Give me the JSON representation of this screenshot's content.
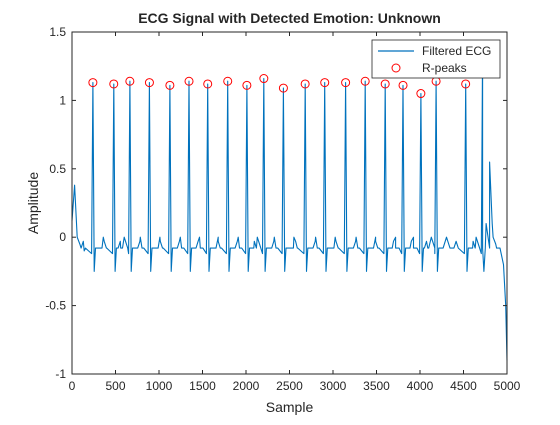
{
  "chart_data": {
    "type": "line",
    "title": "ECG Signal with Detected Emotion: Unknown",
    "xlabel": "Sample",
    "ylabel": "Amplitude",
    "xlim": [
      0,
      5000
    ],
    "ylim": [
      -1,
      1.5
    ],
    "x_ticks": [
      0,
      500,
      1000,
      1500,
      2000,
      2500,
      3000,
      3500,
      4000,
      4500,
      5000
    ],
    "x_tick_labels": [
      "0",
      "500",
      "1000",
      "1500",
      "2000",
      "2500",
      "3000",
      "3500",
      "4000",
      "4500",
      "5000"
    ],
    "y_ticks": [
      -1,
      -0.5,
      0,
      0.5,
      1,
      1.5
    ],
    "y_tick_labels": [
      "-1",
      "-0.5",
      "0",
      "0.5",
      "1",
      "1.5"
    ],
    "grid": false,
    "legend_position": "top-right",
    "series": [
      {
        "name": "Filtered ECG",
        "kind": "line",
        "color": "#0072BD",
        "baseline": -0.08,
        "start_points": [
          [
            0,
            0.12
          ],
          [
            30,
            0.38
          ],
          [
            60,
            0.0
          ],
          [
            90,
            -0.05
          ],
          [
            140,
            -0.1
          ]
        ],
        "end_points": [
          [
            4720,
            -0.08
          ],
          [
            4760,
            0.1
          ],
          [
            4800,
            0.55
          ],
          [
            4830,
            0.1
          ],
          [
            4870,
            -0.05
          ],
          [
            4920,
            -0.08
          ],
          [
            4960,
            -0.2
          ],
          [
            4985,
            -0.5
          ],
          [
            5000,
            -0.9
          ]
        ],
        "beat_shape": {
          "p_wave": {
            "offset": -110,
            "height": 0.05
          },
          "q_dip": {
            "offset": -15,
            "value": -0.12
          },
          "r_peak": {
            "offset": 0
          },
          "s_dip": {
            "offset": 15,
            "value": -0.25
          },
          "t_wave": {
            "offset": 120,
            "height": 0.08
          }
        }
      },
      {
        "name": "R-peaks",
        "kind": "scatter",
        "marker": "circle",
        "color": "#FF0000",
        "x": [
          240,
          480,
          665,
          890,
          1125,
          1345,
          1560,
          1790,
          2010,
          2205,
          2430,
          2680,
          2905,
          3145,
          3370,
          3600,
          3805,
          4010,
          4185,
          4525
        ],
        "y": [
          1.13,
          1.12,
          1.14,
          1.13,
          1.11,
          1.14,
          1.12,
          1.14,
          1.11,
          1.16,
          1.09,
          1.12,
          1.13,
          1.13,
          1.14,
          1.12,
          1.11,
          1.05,
          1.14,
          1.12
        ]
      }
    ],
    "extra_unmarked_peaks": [
      {
        "x": 4720,
        "y": 1.4
      }
    ]
  }
}
